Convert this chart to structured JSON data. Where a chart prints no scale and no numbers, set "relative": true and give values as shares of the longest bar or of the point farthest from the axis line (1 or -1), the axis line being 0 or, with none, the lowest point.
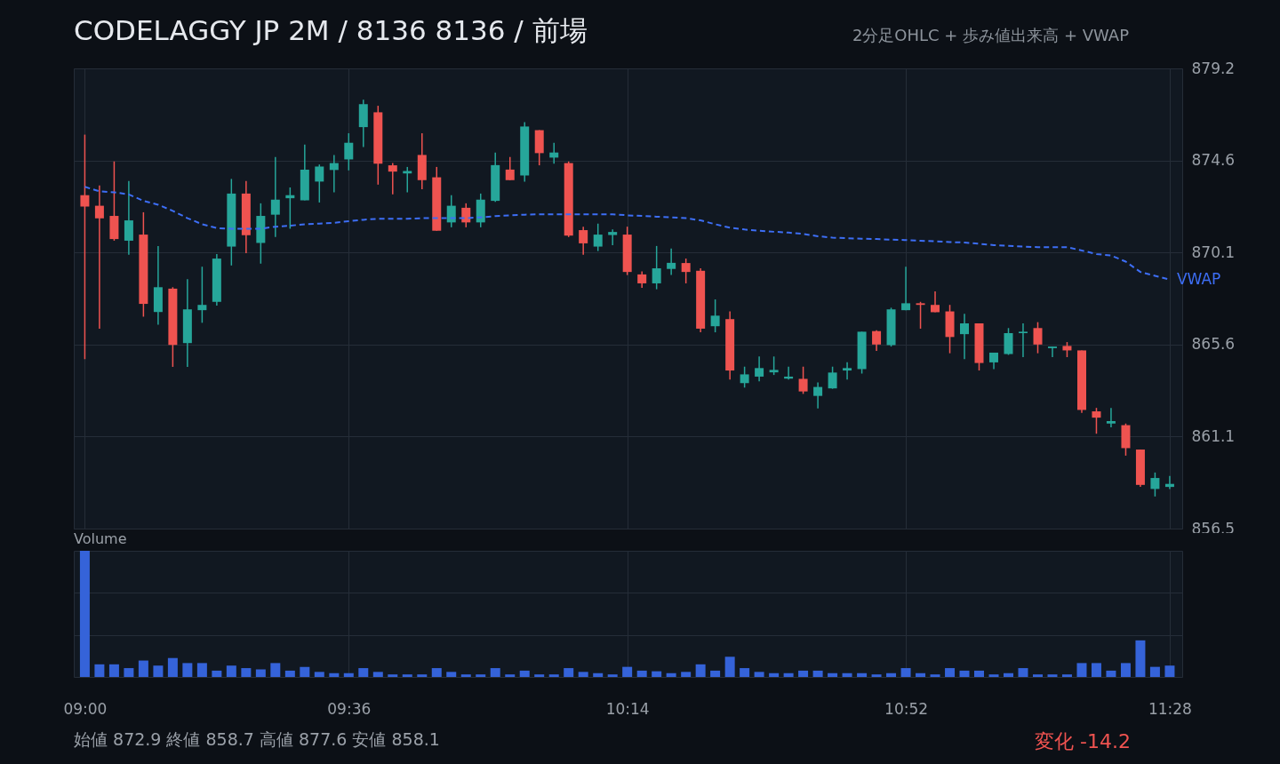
{
  "chart_data": [
    {
      "type": "candlestick",
      "title": "CODELAGGY JP 2M / 8136 8136 / 前場",
      "subtitle": "2分足OHLC + 歩み値出来高 + VWAP",
      "x": [
        9,
        9.0333,
        9.0667,
        9.1,
        9.1333,
        9.1667,
        9.2,
        9.2333,
        9.2667,
        9.3,
        9.3333,
        9.3667,
        9.4,
        9.4333,
        9.4667,
        9.5,
        9.5333,
        9.5667,
        9.6,
        9.6333,
        9.6667,
        9.7,
        9.7333,
        9.7667,
        9.8,
        9.8333,
        9.8667,
        9.9,
        9.9333,
        9.9667,
        10,
        10.0333,
        10.0667,
        10.1,
        10.1333,
        10.1667,
        10.2,
        10.2333,
        10.2667,
        10.3,
        10.3333,
        10.3667,
        10.4,
        10.4333,
        10.4667,
        10.5,
        10.5333,
        10.5667,
        10.6,
        10.6333,
        10.6667,
        10.7,
        10.7333,
        10.7667,
        10.8,
        10.8333,
        10.8667,
        10.9,
        10.9333,
        10.9667,
        11,
        11.0333,
        11.0667,
        11.1,
        11.1333,
        11.1667,
        11.2,
        11.2333,
        11.2667,
        11.3,
        11.3333,
        11.3667,
        11.4,
        11.4333,
        11.4667
      ],
      "ohlc": [
        [
          872.93,
          875.91,
          864.86,
          872.37
        ],
        [
          872.41,
          873.41,
          866.36,
          871.79
        ],
        [
          871.91,
          874.59,
          870.69,
          870.77
        ],
        [
          870.69,
          873.63,
          870.0,
          871.69
        ],
        [
          870.99,
          872.09,
          866.95,
          867.58
        ],
        [
          867.18,
          870.43,
          866.56,
          868.4
        ],
        [
          868.33,
          868.4,
          864.48,
          865.56
        ],
        [
          865.65,
          868.8,
          864.48,
          867.31
        ],
        [
          867.27,
          869.41,
          866.65,
          867.53
        ],
        [
          867.68,
          870.03,
          867.5,
          869.81
        ],
        [
          870.4,
          873.73,
          869.47,
          873.01
        ],
        [
          873.01,
          873.63,
          870.08,
          870.96
        ],
        [
          870.58,
          872.53,
          869.56,
          871.91
        ],
        [
          871.97,
          874.81,
          870.87,
          872.71
        ],
        [
          872.78,
          873.31,
          871.28,
          872.93
        ],
        [
          872.68,
          875.42,
          872.68,
          874.19
        ],
        [
          873.6,
          874.44,
          872.57,
          874.34
        ],
        [
          874.17,
          874.91,
          873.07,
          874.51
        ],
        [
          874.69,
          875.98,
          874.15,
          875.51
        ],
        [
          876.28,
          877.63,
          875.3,
          877.41
        ],
        [
          877.01,
          877.33,
          873.45,
          874.48
        ],
        [
          874.4,
          874.51,
          872.97,
          874.09
        ],
        [
          874.0,
          874.32,
          873.07,
          874.12
        ],
        [
          874.91,
          875.98,
          873.22,
          873.67
        ],
        [
          873.81,
          874.32,
          871.18,
          871.18
        ],
        [
          871.59,
          872.93,
          871.35,
          872.41
        ],
        [
          872.31,
          872.53,
          871.35,
          871.59
        ],
        [
          871.59,
          873.01,
          871.35,
          872.71
        ],
        [
          872.65,
          875.03,
          872.6,
          874.41
        ],
        [
          874.19,
          874.81,
          873.67,
          873.67
        ],
        [
          873.9,
          876.52,
          873.59,
          876.31
        ],
        [
          876.13,
          876.13,
          874.4,
          875.0
        ],
        [
          874.78,
          875.51,
          874.48,
          875.03
        ],
        [
          874.51,
          874.59,
          870.87,
          870.94
        ],
        [
          871.21,
          871.38,
          870.0,
          870.56
        ],
        [
          870.4,
          871.53,
          870.18,
          870.99
        ],
        [
          870.97,
          871.24,
          870.47,
          871.12
        ],
        [
          870.99,
          871.38,
          869.0,
          869.15
        ],
        [
          869.03,
          869.18,
          868.37,
          868.59
        ],
        [
          868.59,
          870.43,
          868.3,
          869.33
        ],
        [
          869.3,
          870.3,
          869.0,
          869.6
        ],
        [
          869.59,
          869.81,
          868.59,
          869.15
        ],
        [
          869.21,
          869.33,
          866.18,
          866.36
        ],
        [
          866.48,
          867.8,
          866.18,
          867.0
        ],
        [
          866.83,
          867.21,
          863.86,
          864.3
        ],
        [
          863.68,
          864.49,
          863.46,
          864.11
        ],
        [
          864.0,
          864.99,
          863.77,
          864.42
        ],
        [
          864.21,
          864.99,
          864.08,
          864.33
        ],
        [
          863.9,
          864.49,
          863.86,
          864.0
        ],
        [
          863.89,
          864.49,
          863.15,
          863.27
        ],
        [
          863.05,
          863.71,
          862.43,
          863.49
        ],
        [
          863.42,
          864.49,
          863.4,
          864.2
        ],
        [
          864.3,
          864.71,
          863.86,
          864.42
        ],
        [
          864.37,
          866.21,
          864.15,
          866.21
        ],
        [
          866.24,
          866.28,
          865.26,
          865.58
        ],
        [
          865.55,
          867.39,
          865.48,
          867.31
        ],
        [
          867.27,
          869.41,
          867.27,
          867.61
        ],
        [
          867.61,
          867.68,
          866.36,
          867.53
        ],
        [
          867.53,
          868.19,
          867.17,
          867.17
        ],
        [
          867.21,
          867.53,
          865.15,
          865.95
        ],
        [
          866.09,
          867.09,
          864.86,
          866.62
        ],
        [
          866.62,
          866.62,
          864.3,
          864.67
        ],
        [
          864.7,
          865.18,
          864.37,
          865.18
        ],
        [
          865.11,
          866.39,
          865.07,
          866.14
        ],
        [
          866.14,
          866.62,
          864.96,
          866.21
        ],
        [
          866.39,
          866.68,
          865.15,
          865.58
        ],
        [
          865.4,
          865.48,
          864.96,
          865.48
        ],
        [
          865.51,
          865.7,
          864.96,
          865.29
        ],
        [
          865.29,
          865.29,
          862.21,
          862.36
        ],
        [
          862.29,
          862.46,
          861.19,
          861.98
        ],
        [
          861.69,
          862.46,
          861.51,
          861.81
        ],
        [
          861.61,
          861.69,
          860.11,
          860.48
        ],
        [
          860.41,
          860.41,
          858.57,
          858.67
        ],
        [
          858.47,
          859.28,
          858.1,
          859.01
        ],
        [
          858.57,
          859.11,
          858.47,
          858.72
        ]
      ],
      "series": [
        {
          "name": "VWAP",
          "type": "line",
          "color": "#3d6ef5",
          "line_style": "dashed",
          "values": [
            873.34,
            873.12,
            873.07,
            872.97,
            872.65,
            872.46,
            872.16,
            871.8,
            871.5,
            871.31,
            871.28,
            871.28,
            871.28,
            871.38,
            871.43,
            871.5,
            871.53,
            871.57,
            871.65,
            871.72,
            871.77,
            871.77,
            871.77,
            871.8,
            871.8,
            871.8,
            871.8,
            871.84,
            871.9,
            871.94,
            871.97,
            871.99,
            871.99,
            871.99,
            871.99,
            871.99,
            871.99,
            871.94,
            871.91,
            871.87,
            871.84,
            871.8,
            871.69,
            871.5,
            871.33,
            871.24,
            871.18,
            871.13,
            871.09,
            871.02,
            870.91,
            870.84,
            870.81,
            870.79,
            870.77,
            870.74,
            870.72,
            870.69,
            870.66,
            870.62,
            870.6,
            870.54,
            870.47,
            870.44,
            870.4,
            870.37,
            870.37,
            870.37,
            870.21,
            870.03,
            869.96,
            869.66,
            869.15,
            868.96,
            868.78
          ]
        }
      ],
      "xlim": [
        8.985,
        11.485
      ],
      "xticks": [
        {
          "value": 9,
          "label": null
        },
        {
          "value": 9.6,
          "label": null
        },
        {
          "value": 10.2333,
          "label": null
        },
        {
          "value": 10.8667,
          "label": null
        },
        {
          "value": 11.4667,
          "label": null
        }
      ],
      "ylim": [
        856.52,
        879.17
      ],
      "yticks": [
        {
          "value": 856.52,
          "label": "856.5"
        },
        {
          "value": 861.05,
          "label": "861.1"
        },
        {
          "value": 865.58,
          "label": "865.6"
        },
        {
          "value": 870.11,
          "label": "870.1"
        },
        {
          "value": 874.64,
          "label": "874.6"
        },
        {
          "value": 879.17,
          "label": "879.2"
        }
      ],
      "tick_labels": "y",
      "grid": true,
      "annotations": [
        "始値 872.9 終値 858.7 高値 877.6 安値 858.1",
        "変化 -14.2"
      ]
    },
    {
      "type": "bar",
      "title": "Volume",
      "relative": true,
      "tick_labels": "x",
      "grid": true,
      "x": [
        9,
        9.0333,
        9.0667,
        9.1,
        9.1333,
        9.1667,
        9.2,
        9.2333,
        9.2667,
        9.3,
        9.3333,
        9.3667,
        9.4,
        9.4333,
        9.4667,
        9.5,
        9.5333,
        9.5667,
        9.6,
        9.6333,
        9.6667,
        9.7,
        9.7333,
        9.7667,
        9.8,
        9.8333,
        9.8667,
        9.9,
        9.9333,
        9.9667,
        10,
        10.0333,
        10.0667,
        10.1,
        10.1333,
        10.1667,
        10.2,
        10.2333,
        10.2667,
        10.3,
        10.3333,
        10.3667,
        10.4,
        10.4333,
        10.4667,
        10.5,
        10.5333,
        10.5667,
        10.6,
        10.6333,
        10.6667,
        10.7,
        10.7333,
        10.7667,
        10.8,
        10.8333,
        10.8667,
        10.9,
        10.9333,
        10.9667,
        11,
        11.0333,
        11.0667,
        11.1,
        11.1333,
        11.1667,
        11.2,
        11.2333,
        11.2667,
        11.3,
        11.3333,
        11.3667,
        11.4,
        11.4333,
        11.4667
      ],
      "xlim": [
        8.985,
        11.485
      ],
      "xticks": [
        {
          "value": 9,
          "label": "09:00"
        },
        {
          "value": 9.6,
          "label": "09:36"
        },
        {
          "value": 10.2333,
          "label": "10:14"
        },
        {
          "value": 10.8667,
          "label": "10:52"
        },
        {
          "value": 11.4667,
          "label": "11:28"
        }
      ],
      "series": [
        {
          "color": "#3563d9",
          "values": [
            1,
            0.1,
            0.1,
            0.07,
            0.13,
            0.09,
            0.15,
            0.11,
            0.11,
            0.05,
            0.09,
            0.07,
            0.06,
            0.11,
            0.05,
            0.08,
            0.04,
            0.03,
            0.03,
            0.07,
            0.04,
            0.02,
            0.02,
            0.02,
            0.07,
            0.04,
            0.02,
            0.02,
            0.07,
            0.02,
            0.05,
            0.02,
            0.02,
            0.07,
            0.04,
            0.03,
            0.02,
            0.08,
            0.05,
            0.045,
            0.03,
            0.04,
            0.1,
            0.05,
            0.16,
            0.07,
            0.04,
            0.03,
            0.03,
            0.05,
            0.05,
            0.03,
            0.03,
            0.03,
            0.02,
            0.03,
            0.07,
            0.03,
            0.02,
            0.07,
            0.05,
            0.05,
            0.02,
            0.03,
            0.07,
            0.02,
            0.02,
            0.02,
            0.11,
            0.11,
            0.05,
            0.11,
            0.29,
            0.08,
            0.09
          ]
        }
      ]
    }
  ]
}
